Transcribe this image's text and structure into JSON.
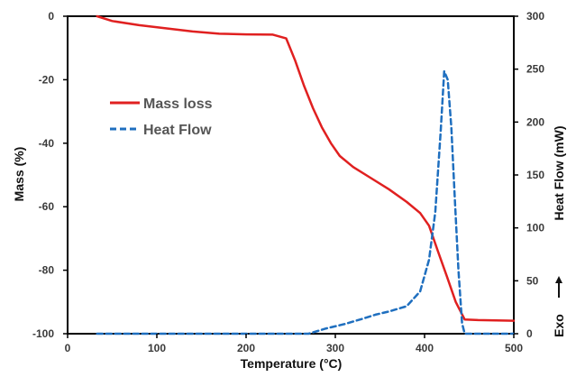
{
  "chart_data": {
    "type": "line",
    "xlabel": "Temperature (°C)",
    "ylabel_left": "Mass (%)",
    "ylabel_right": "Heat Flow (mW)",
    "exo_label": "Exo",
    "xlim": [
      0,
      500
    ],
    "ylim_left": [
      -100,
      0
    ],
    "ylim_right": [
      0,
      300
    ],
    "x_ticks": [
      0,
      100,
      200,
      300,
      400,
      500
    ],
    "y_ticks_left": [
      0,
      -20,
      -40,
      -60,
      -80,
      -100
    ],
    "y_ticks_right": [
      300,
      250,
      200,
      150,
      100,
      50,
      0
    ],
    "grid": false,
    "legend_placement": "upper-left",
    "series": [
      {
        "name": "Mass loss",
        "axis": "left",
        "color": "#e02020",
        "style": "solid",
        "x": [
          33,
          50,
          80,
          110,
          140,
          170,
          200,
          230,
          245,
          255,
          265,
          275,
          285,
          295,
          305,
          320,
          340,
          360,
          380,
          395,
          405,
          415,
          425,
          435,
          445,
          460,
          480,
          500
        ],
        "y": [
          0,
          -1.5,
          -2.8,
          -3.8,
          -4.8,
          -5.5,
          -5.7,
          -5.8,
          -7,
          -14,
          -22,
          -29,
          -35,
          -40,
          -44,
          -47.5,
          -51,
          -54.5,
          -58.5,
          -62,
          -66,
          -74,
          -82,
          -90,
          -95.5,
          -95.7,
          -95.8,
          -95.9
        ]
      },
      {
        "name": "Heat Flow",
        "axis": "right",
        "color": "#1f6fbf",
        "style": "dashed",
        "x": [
          33,
          100,
          200,
          270,
          290,
          310,
          330,
          345,
          360,
          380,
          395,
          405,
          412,
          418,
          422,
          426,
          430,
          434,
          438,
          442,
          445,
          460,
          500
        ],
        "y": [
          0,
          0,
          0,
          0,
          5,
          9,
          14,
          18,
          21,
          26,
          40,
          70,
          115,
          190,
          248,
          240,
          195,
          125,
          60,
          10,
          0,
          0,
          0
        ]
      }
    ]
  }
}
